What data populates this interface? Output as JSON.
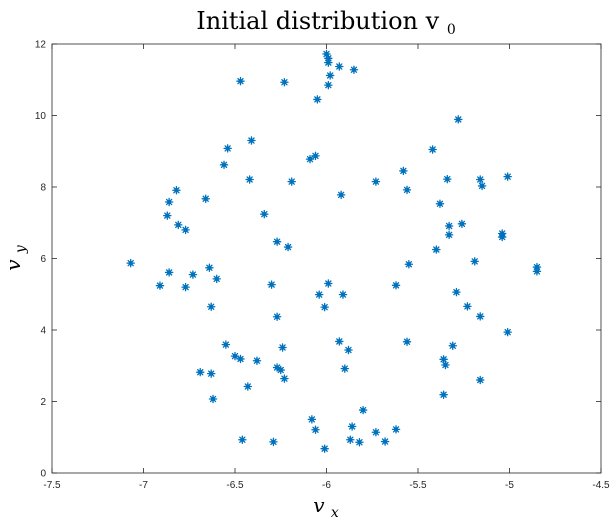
{
  "chart_data": {
    "type": "scatter",
    "title": "Initial distribution v",
    "title_subscript": "0",
    "xlabel": "v",
    "xlabel_subscript": "x",
    "ylabel": "v",
    "ylabel_subscript": "y",
    "xlim": [
      -7.5,
      -4.5
    ],
    "ylim": [
      0,
      12
    ],
    "xticks": [
      -7.5,
      -7,
      -6.5,
      -6,
      -5.5,
      -5,
      -4.5
    ],
    "xtick_labels": [
      "-7.5",
      "-7",
      "-6.5",
      "-6",
      "-5.5",
      "-5",
      "-4.5"
    ],
    "yticks": [
      0,
      2,
      4,
      6,
      8,
      10,
      12
    ],
    "ytick_labels": [
      "0",
      "2",
      "4",
      "6",
      "8",
      "10",
      "12"
    ],
    "grid": false,
    "marker": "asterisk",
    "color": "#0072bd",
    "points": [
      [
        -6.0,
        11.72
      ],
      [
        -5.99,
        11.6
      ],
      [
        -5.99,
        11.48
      ],
      [
        -5.98,
        11.12
      ],
      [
        -5.99,
        10.85
      ],
      [
        -5.93,
        11.37
      ],
      [
        -5.85,
        11.28
      ],
      [
        -6.47,
        10.96
      ],
      [
        -6.23,
        10.93
      ],
      [
        -6.05,
        10.45
      ],
      [
        -5.28,
        9.89
      ],
      [
        -6.41,
        9.3
      ],
      [
        -6.54,
        9.08
      ],
      [
        -5.42,
        9.05
      ],
      [
        -6.06,
        8.87
      ],
      [
        -6.09,
        8.78
      ],
      [
        -6.56,
        8.62
      ],
      [
        -5.58,
        8.45
      ],
      [
        -6.42,
        8.21
      ],
      [
        -6.19,
        8.15
      ],
      [
        -5.73,
        8.15
      ],
      [
        -5.34,
        8.22
      ],
      [
        -5.16,
        8.21
      ],
      [
        -5.01,
        8.29
      ],
      [
        -5.15,
        8.03
      ],
      [
        -5.56,
        7.92
      ],
      [
        -6.82,
        7.91
      ],
      [
        -5.92,
        7.78
      ],
      [
        -6.66,
        7.67
      ],
      [
        -6.86,
        7.58
      ],
      [
        -5.38,
        7.53
      ],
      [
        -6.87,
        7.2
      ],
      [
        -6.34,
        7.24
      ],
      [
        -6.81,
        6.94
      ],
      [
        -5.26,
        6.97
      ],
      [
        -5.33,
        6.91
      ],
      [
        -6.77,
        6.8
      ],
      [
        -5.04,
        6.7
      ],
      [
        -5.04,
        6.6
      ],
      [
        -5.33,
        6.66
      ],
      [
        -6.27,
        6.47
      ],
      [
        -6.21,
        6.32
      ],
      [
        -5.4,
        6.25
      ],
      [
        -7.07,
        5.87
      ],
      [
        -5.19,
        5.92
      ],
      [
        -5.55,
        5.84
      ],
      [
        -6.64,
        5.74
      ],
      [
        -4.85,
        5.76
      ],
      [
        -4.85,
        5.64
      ],
      [
        -6.86,
        5.61
      ],
      [
        -6.73,
        5.55
      ],
      [
        -6.6,
        5.43
      ],
      [
        -5.99,
        5.3
      ],
      [
        -6.3,
        5.27
      ],
      [
        -6.91,
        5.24
      ],
      [
        -6.77,
        5.2
      ],
      [
        -5.62,
        5.25
      ],
      [
        -5.29,
        5.06
      ],
      [
        -6.04,
        4.99
      ],
      [
        -5.91,
        4.99
      ],
      [
        -5.23,
        4.66
      ],
      [
        -6.63,
        4.65
      ],
      [
        -6.01,
        4.64
      ],
      [
        -5.16,
        4.38
      ],
      [
        -6.27,
        4.37
      ],
      [
        -5.01,
        3.94
      ],
      [
        -5.93,
        3.68
      ],
      [
        -5.56,
        3.67
      ],
      [
        -6.55,
        3.59
      ],
      [
        -5.31,
        3.56
      ],
      [
        -6.24,
        3.51
      ],
      [
        -5.88,
        3.44
      ],
      [
        -6.5,
        3.27
      ],
      [
        -6.47,
        3.19
      ],
      [
        -5.36,
        3.18
      ],
      [
        -6.38,
        3.14
      ],
      [
        -5.35,
        3.02
      ],
      [
        -6.27,
        2.95
      ],
      [
        -6.25,
        2.88
      ],
      [
        -5.9,
        2.92
      ],
      [
        -6.69,
        2.82
      ],
      [
        -6.63,
        2.78
      ],
      [
        -6.23,
        2.64
      ],
      [
        -5.16,
        2.6
      ],
      [
        -6.43,
        2.42
      ],
      [
        -5.36,
        2.19
      ],
      [
        -6.62,
        2.07
      ],
      [
        -5.8,
        1.76
      ],
      [
        -6.08,
        1.5
      ],
      [
        -6.06,
        1.21
      ],
      [
        -5.86,
        1.3
      ],
      [
        -5.62,
        1.22
      ],
      [
        -5.73,
        1.14
      ],
      [
        -5.87,
        0.93
      ],
      [
        -6.46,
        0.93
      ],
      [
        -6.29,
        0.87
      ],
      [
        -5.82,
        0.86
      ],
      [
        -5.68,
        0.88
      ],
      [
        -6.01,
        0.68
      ]
    ]
  }
}
